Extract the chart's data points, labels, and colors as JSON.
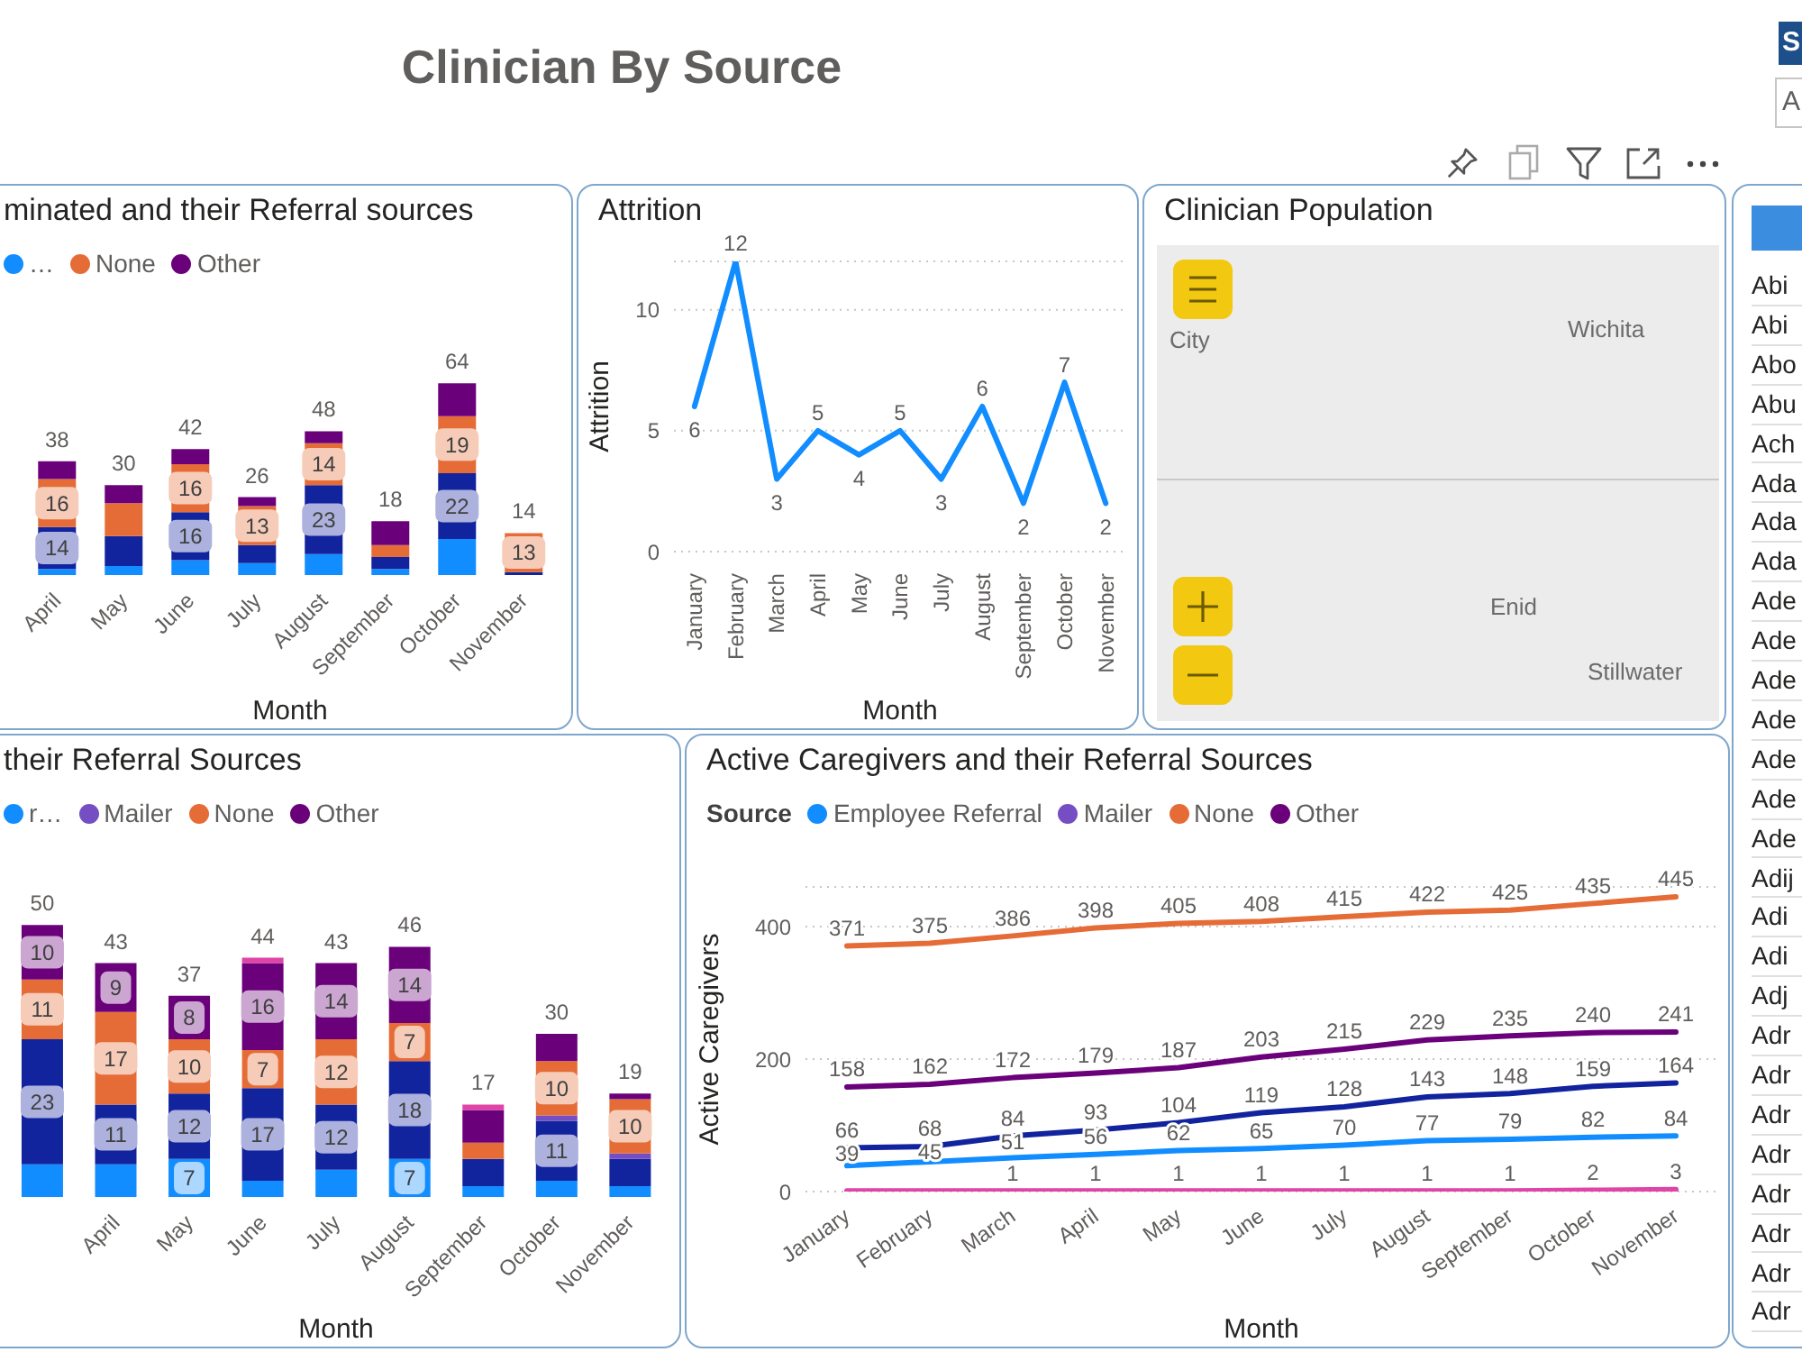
{
  "chart_data": [
    {
      "type": "other",
      "title": "Clinician By Source",
      "annotations": [
        "S",
        "A"
      ]
    },
    {
      "type": "bar",
      "stacked": true,
      "title": "minated and their Referral sources",
      "categories": [
        "April",
        "May",
        "June",
        "July",
        "August",
        "September",
        "October",
        "November"
      ],
      "series": [
        {
          "name": "…",
          "color": "#118dff",
          "values": [
            2,
            3,
            5,
            4,
            7,
            2,
            12,
            null
          ]
        },
        {
          "color": "#12239e",
          "values": [
            14,
            10,
            16,
            6,
            23,
            4,
            22,
            1
          ],
          "value_labels": [
            "14",
            null,
            "16",
            null,
            "23",
            null,
            "22",
            null
          ]
        },
        {
          "name": "None",
          "color": "#e66c37",
          "values": [
            16,
            11,
            16,
            13,
            14,
            4,
            19,
            13
          ],
          "value_labels": [
            "16",
            null,
            "16",
            "13",
            "14",
            null,
            "19",
            "13"
          ]
        },
        {
          "name": "Other",
          "color": "#6b007b",
          "values": [
            6,
            6,
            5,
            3,
            4,
            8,
            11,
            null
          ]
        }
      ],
      "totals": [
        "38",
        "30",
        "42",
        "26",
        "48",
        "18",
        "64",
        "14"
      ],
      "xlabel": "Month",
      "tick_labels": "x",
      "legend": "top left"
    },
    {
      "type": "line",
      "title": "Attrition",
      "categories": [
        "January",
        "February",
        "March",
        "April",
        "May",
        "June",
        "July",
        "August",
        "September",
        "October",
        "November"
      ],
      "values": [
        6,
        12,
        3,
        5,
        4,
        5,
        3,
        6,
        2,
        7,
        2
      ],
      "color": "#118dff",
      "data_labels": true,
      "xlabel": "Month",
      "ylabel": "Attrition",
      "ylim": [
        0,
        12
      ],
      "yticks": [
        0,
        5,
        10
      ],
      "grid": "y"
    },
    {
      "type": "other",
      "title": "Clinician Population",
      "annotations": [
        "City",
        "Wichita",
        "Enid",
        "Stillwater"
      ]
    },
    {
      "type": "other",
      "annotations": [
        "Abi",
        "Abi",
        "Abo",
        "Abu",
        "Ach",
        "Ada",
        "Ada",
        "Ada",
        "Ade",
        "Ade",
        "Ade",
        "Ade",
        "Ade",
        "Ade",
        "Ade",
        "Adij",
        "Adi",
        "Adi",
        "Adj",
        "Adr",
        "Adr",
        "Adr",
        "Adr",
        "Adr",
        "Adr",
        "Adr",
        "Adr"
      ]
    },
    {
      "type": "bar",
      "stacked": true,
      "title": "their Referral Sources",
      "categories": [
        null,
        "April",
        "May",
        "June",
        "July",
        "August",
        "September",
        "October",
        "November"
      ],
      "series": [
        {
          "name": "r…",
          "color": "#118dff",
          "values": [
            6,
            6,
            7,
            3,
            5,
            7,
            2,
            3,
            2
          ],
          "value_labels": [
            null,
            null,
            "7",
            null,
            null,
            "7",
            null,
            null,
            null
          ]
        },
        {
          "color": "#12239e",
          "values": [
            23,
            11,
            12,
            17,
            12,
            18,
            5,
            11,
            5
          ],
          "value_labels": [
            "23",
            "11",
            "12",
            "17",
            "12",
            "18",
            null,
            "11",
            null
          ]
        },
        {
          "name": "Mailer",
          "color": "#744ec2",
          "values": [
            null,
            null,
            null,
            null,
            null,
            null,
            null,
            1,
            1
          ]
        },
        {
          "name": "None",
          "color": "#e66c37",
          "values": [
            11,
            17,
            10,
            7,
            12,
            7,
            3,
            10,
            10
          ],
          "value_labels": [
            "11",
            "17",
            "10",
            "7",
            "12",
            "7",
            null,
            "10",
            "10"
          ]
        },
        {
          "name": "Other",
          "color": "#6b007b",
          "values": [
            10,
            9,
            8,
            16,
            14,
            14,
            6,
            5,
            1
          ],
          "value_labels": [
            "10",
            "9",
            "8",
            "16",
            "14",
            "14",
            null,
            null,
            null
          ]
        },
        {
          "color": "#e044a7",
          "values": [
            null,
            null,
            null,
            1,
            null,
            null,
            1,
            null,
            null
          ]
        }
      ],
      "totals": [
        "50",
        "43",
        "37",
        "44",
        "43",
        "46",
        "17",
        "30",
        "19"
      ],
      "xlabel": "Month",
      "tick_labels": "x",
      "legend": "top left"
    },
    {
      "type": "line",
      "title": "Active Caregivers and their Referral Sources",
      "categories": [
        "January",
        "February",
        "March",
        "April",
        "May",
        "June",
        "July",
        "August",
        "September",
        "October",
        "November"
      ],
      "series": [
        {
          "name": "Employee Referral",
          "color": "#118dff",
          "values": [
            39,
            45,
            51,
            56,
            62,
            65,
            70,
            77,
            79,
            82,
            84
          ],
          "value_labels": [
            "39",
            "45",
            "51",
            "56",
            "62",
            "65",
            "70",
            "77",
            "79",
            "82",
            "84"
          ]
        },
        {
          "color": "#12239e",
          "values": [
            66,
            68,
            84,
            93,
            104,
            119,
            128,
            143,
            148,
            159,
            164
          ],
          "value_labels": [
            "66",
            "68",
            "84",
            "93",
            "104",
            "119",
            "128",
            "143",
            "148",
            "159",
            "164"
          ]
        },
        {
          "name": "Mailer",
          "color": "#744ec2",
          "values": [
            null,
            null,
            null,
            null,
            null,
            null,
            null,
            null,
            null,
            null,
            null
          ]
        },
        {
          "name": "None",
          "color": "#e66c37",
          "values": [
            371,
            375,
            386,
            398,
            405,
            408,
            415,
            422,
            425,
            435,
            445
          ],
          "value_labels": [
            "371",
            "375",
            "386",
            "398",
            "405",
            "408",
            "415",
            "422",
            "425",
            "435",
            "445"
          ]
        },
        {
          "name": "Other",
          "color": "#6b007b",
          "values": [
            158,
            162,
            172,
            179,
            187,
            203,
            215,
            229,
            235,
            240,
            241
          ],
          "value_labels": [
            "158",
            "162",
            "172",
            "179",
            "187",
            "203",
            "215",
            "229",
            "235",
            "240",
            "241"
          ]
        },
        {
          "color": "#e044a7",
          "values": [
            1,
            1,
            1,
            1,
            1,
            1,
            1,
            1,
            1,
            2,
            3
          ],
          "value_labels": [
            null,
            null,
            "1",
            "1",
            "1",
            "1",
            "1",
            "1",
            "1",
            "2",
            "3"
          ]
        }
      ],
      "legend": "top left",
      "legend_title": "Source",
      "xlabel": "Month",
      "ylabel": "Active Caregivers",
      "ylim": [
        0,
        460
      ],
      "yticks": [
        0,
        200,
        400
      ],
      "grid": "y"
    }
  ]
}
